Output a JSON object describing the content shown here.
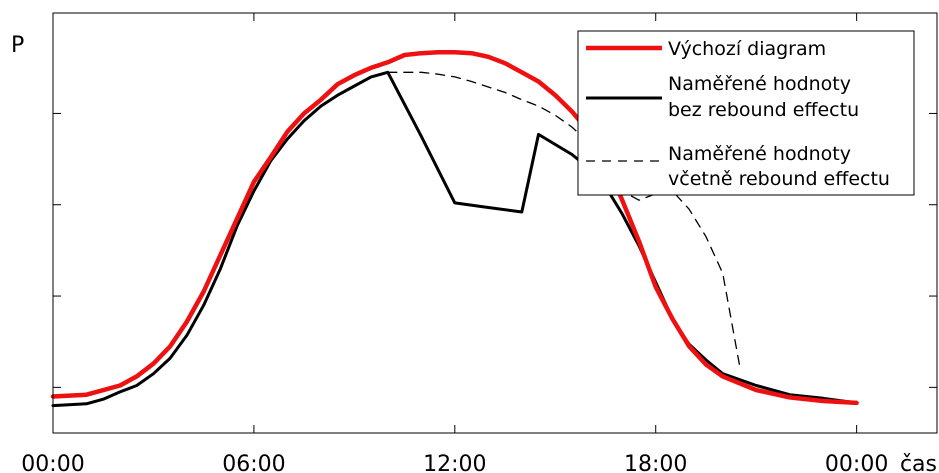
{
  "chart_data": {
    "type": "line",
    "title": "",
    "xlabel": "čas",
    "ylabel": "P",
    "xlim": [
      0,
      26.4
    ],
    "ylim": [
      -0.3,
      4.3
    ],
    "x_ticks": [
      0,
      6,
      12,
      18,
      24
    ],
    "x_tick_labels": [
      "00:00",
      "06:00",
      "12:00",
      "18:00",
      "00:00"
    ],
    "y_ticks": [
      0.2,
      1.2,
      2.2,
      3.2
    ],
    "y_tick_labels": [
      "",
      "",
      "",
      ""
    ],
    "grid": false,
    "legend_position": "top-right",
    "series": [
      {
        "name": "Výchozí diagram",
        "color": "#ee1111",
        "style": "solid",
        "x": [
          0,
          1,
          2,
          2.5,
          3,
          3.5,
          4,
          4.5,
          5,
          5.5,
          6,
          6.5,
          7,
          7.5,
          8,
          8.5,
          9,
          9.5,
          10,
          10.5,
          11,
          11.5,
          12,
          12.5,
          13,
          13.5,
          14,
          14.5,
          15,
          15.5,
          16,
          16.5,
          17,
          17.5,
          18,
          18.5,
          19,
          19.5,
          20,
          21,
          22,
          23,
          24
        ],
        "y": [
          0.1,
          0.12,
          0.22,
          0.32,
          0.46,
          0.65,
          0.92,
          1.25,
          1.65,
          2.05,
          2.45,
          2.72,
          3.0,
          3.2,
          3.35,
          3.52,
          3.62,
          3.7,
          3.76,
          3.84,
          3.86,
          3.87,
          3.87,
          3.86,
          3.82,
          3.75,
          3.65,
          3.55,
          3.4,
          3.22,
          3.0,
          2.7,
          2.25,
          1.8,
          1.3,
          0.95,
          0.65,
          0.45,
          0.32,
          0.17,
          0.09,
          0.05,
          0.03
        ]
      },
      {
        "name": "Naměřené hodnoty\nbez rebound effectu",
        "color": "#000000",
        "style": "solid",
        "x": [
          0,
          1,
          1.5,
          2,
          2.5,
          3,
          3.5,
          4,
          4.5,
          5,
          5.5,
          6,
          6.5,
          7,
          7.5,
          8,
          8.5,
          9,
          9.5,
          10,
          11,
          12,
          13,
          14,
          14.5,
          15,
          15.5,
          16,
          16.5,
          17,
          17.5,
          18,
          18.5,
          19,
          19.5,
          20,
          21,
          22,
          23,
          24
        ],
        "y": [
          0.0,
          0.02,
          0.07,
          0.15,
          0.22,
          0.35,
          0.52,
          0.77,
          1.1,
          1.5,
          1.97,
          2.35,
          2.68,
          2.92,
          3.12,
          3.28,
          3.4,
          3.5,
          3.6,
          3.65,
          2.95,
          2.22,
          2.17,
          2.12,
          2.97,
          2.86,
          2.75,
          2.6,
          2.4,
          2.1,
          1.75,
          1.35,
          0.95,
          0.67,
          0.5,
          0.35,
          0.22,
          0.12,
          0.08,
          0.03
        ]
      },
      {
        "name": "Naměřené hodnoty\nvčetně rebound effectu",
        "color": "#000000",
        "style": "dashed",
        "x": [
          10,
          11,
          11.5,
          12,
          12.5,
          13,
          13.5,
          14,
          14.5,
          15,
          15.5,
          16,
          16.5,
          17,
          17.5,
          18,
          18.5,
          19,
          19.5,
          20,
          20.5
        ],
        "y": [
          3.65,
          3.65,
          3.63,
          3.6,
          3.55,
          3.49,
          3.43,
          3.35,
          3.28,
          3.18,
          3.05,
          2.88,
          2.62,
          2.35,
          2.25,
          2.32,
          2.35,
          2.15,
          1.85,
          1.45,
          0.45
        ]
      }
    ]
  }
}
